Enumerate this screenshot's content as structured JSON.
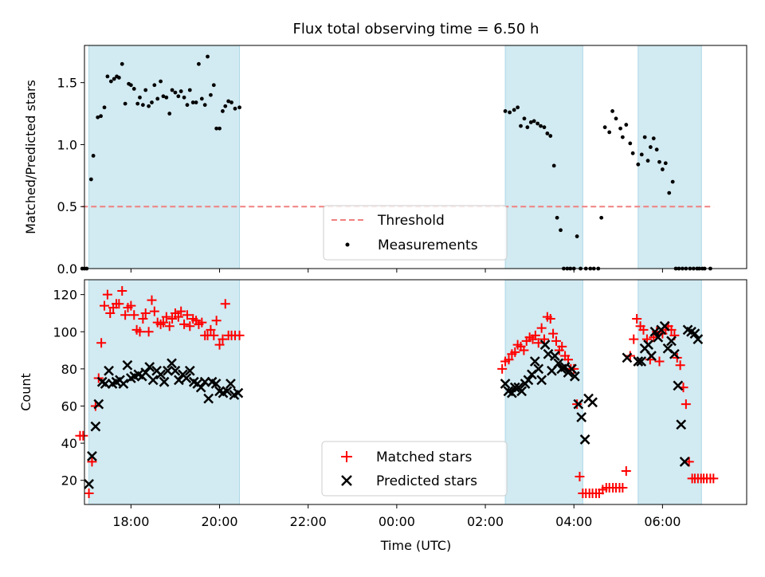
{
  "chart_data": [
    {
      "type": "scatter",
      "title": "Flux total observing time = 6.50 h",
      "xlabel": "",
      "ylabel": "Matched/Predicted stars",
      "xlim": [
        16.95,
        31.9
      ],
      "ylim": [
        0,
        1.8
      ],
      "yticks": [
        0,
        0.5,
        1.0,
        1.5
      ],
      "ytick_labels": [
        "0.0",
        "0.5",
        "1.0",
        "1.5"
      ],
      "bands": [
        [
          17.05,
          20.45
        ],
        [
          26.45,
          28.2
        ],
        [
          29.45,
          30.88
        ]
      ],
      "band_color": "#add8e6",
      "threshold": {
        "name": "Threshold",
        "value": 0.5,
        "x_range": [
          16.9,
          31.15
        ],
        "color": "#f08080"
      },
      "legend": {
        "position": "lower-center",
        "entries": [
          "Threshold",
          "Measurements"
        ]
      },
      "series": [
        {
          "name": "Measurements",
          "color": "#000000",
          "x": [
            16.9,
            16.95,
            17.0,
            17.1,
            17.15,
            17.25,
            17.32,
            17.4,
            17.47,
            17.55,
            17.62,
            17.68,
            17.73,
            17.8,
            17.87,
            17.95,
            18.0,
            18.07,
            18.15,
            18.2,
            18.27,
            18.33,
            18.4,
            18.47,
            18.53,
            18.6,
            18.67,
            18.73,
            18.8,
            18.87,
            18.93,
            19.0,
            19.07,
            19.13,
            19.2,
            19.27,
            19.33,
            19.4,
            19.47,
            19.53,
            19.6,
            19.67,
            19.73,
            19.8,
            19.87,
            19.93,
            20.0,
            20.07,
            20.13,
            20.2,
            20.27,
            20.35,
            20.45,
            26.45,
            26.55,
            26.65,
            26.73,
            26.8,
            26.88,
            26.95,
            27.03,
            27.1,
            27.18,
            27.25,
            27.33,
            27.4,
            27.47,
            27.55,
            27.62,
            27.7,
            27.77,
            27.85,
            27.92,
            28.0,
            28.07,
            28.15,
            28.27,
            28.37,
            28.45,
            28.55,
            28.62,
            28.7,
            28.8,
            28.87,
            28.95,
            29.05,
            29.1,
            29.18,
            29.27,
            29.33,
            29.45,
            29.53,
            29.6,
            29.67,
            29.73,
            29.8,
            29.87,
            29.93,
            30.0,
            30.07,
            30.15,
            30.23,
            30.3,
            30.37,
            30.45,
            30.53,
            30.62,
            30.7,
            30.78,
            30.83,
            30.9,
            30.95,
            31.08
          ],
          "y": [
            0.0,
            0.0,
            0.0,
            0.72,
            0.91,
            1.22,
            1.23,
            1.3,
            1.55,
            1.51,
            1.53,
            1.55,
            1.54,
            1.65,
            1.33,
            1.49,
            1.48,
            1.45,
            1.33,
            1.38,
            1.32,
            1.44,
            1.31,
            1.34,
            1.48,
            1.37,
            1.51,
            1.39,
            1.38,
            1.25,
            1.44,
            1.42,
            1.39,
            1.43,
            1.38,
            1.32,
            1.44,
            1.34,
            1.34,
            1.65,
            1.37,
            1.32,
            1.71,
            1.4,
            1.48,
            1.13,
            1.13,
            1.27,
            1.31,
            1.35,
            1.34,
            1.29,
            1.3,
            1.27,
            1.26,
            1.28,
            1.3,
            1.15,
            1.21,
            1.14,
            1.18,
            1.19,
            1.17,
            1.15,
            1.14,
            1.09,
            1.07,
            0.83,
            0.41,
            0.31,
            0.0,
            0.0,
            0.0,
            0.0,
            0.26,
            0.0,
            0.0,
            0.0,
            0.0,
            0.0,
            0.41,
            1.14,
            1.1,
            1.27,
            1.21,
            1.13,
            1.06,
            1.16,
            1.01,
            0.93,
            0.84,
            0.92,
            1.06,
            0.87,
            0.98,
            1.05,
            0.96,
            0.86,
            0.8,
            0.85,
            0.61,
            0.7,
            0.0,
            0.0,
            0.0,
            0.0,
            0.0,
            0.0,
            0.0,
            0.0,
            0.0,
            0.0,
            0.0
          ]
        }
      ]
    },
    {
      "type": "scatter",
      "title": "",
      "xlabel": "Time (UTC)",
      "ylabel": "Count",
      "xlim": [
        16.95,
        31.9
      ],
      "ylim": [
        7,
        128
      ],
      "yticks": [
        20,
        40,
        60,
        80,
        100,
        120
      ],
      "xticks": [
        18,
        20,
        22,
        24,
        26,
        28,
        30
      ],
      "xtick_labels": [
        "18:00",
        "20:00",
        "22:00",
        "00:00",
        "02:00",
        "04:00",
        "06:00"
      ],
      "bands": [
        [
          17.05,
          20.45
        ],
        [
          26.45,
          28.2
        ],
        [
          29.45,
          30.88
        ]
      ],
      "band_color": "#add8e6",
      "legend": {
        "position": "lower-center",
        "entries": [
          "Matched stars",
          "Predicted stars"
        ]
      },
      "series": [
        {
          "name": "Matched stars",
          "color": "#ff0000",
          "marker": "+",
          "x": [
            16.85,
            16.92,
            17.05,
            17.12,
            17.2,
            17.27,
            17.33,
            17.4,
            17.47,
            17.53,
            17.6,
            17.67,
            17.73,
            17.8,
            17.87,
            17.93,
            18.0,
            18.07,
            18.13,
            18.2,
            18.27,
            18.33,
            18.4,
            18.47,
            18.53,
            18.6,
            18.67,
            18.73,
            18.8,
            18.87,
            18.93,
            19.0,
            19.07,
            19.13,
            19.2,
            19.27,
            19.33,
            19.4,
            19.47,
            19.53,
            19.6,
            19.67,
            19.73,
            19.8,
            19.87,
            19.93,
            20.0,
            20.07,
            20.13,
            20.2,
            20.27,
            20.35,
            20.45,
            26.38,
            26.45,
            26.53,
            26.6,
            26.67,
            26.73,
            26.8,
            26.87,
            26.93,
            27.0,
            27.07,
            27.13,
            27.2,
            27.27,
            27.33,
            27.4,
            27.47,
            27.53,
            27.6,
            27.67,
            27.73,
            27.8,
            27.87,
            27.93,
            28.0,
            28.07,
            28.13,
            28.2,
            28.27,
            28.35,
            28.42,
            28.5,
            28.57,
            28.65,
            28.73,
            28.8,
            28.88,
            28.95,
            29.03,
            29.1,
            29.18,
            29.27,
            29.35,
            29.42,
            29.5,
            29.57,
            29.65,
            29.72,
            29.8,
            29.87,
            29.93,
            30.0,
            30.07,
            30.13,
            30.2,
            30.27,
            30.33,
            30.4,
            30.47,
            30.53,
            30.6,
            30.67,
            30.73,
            30.8,
            30.87,
            30.93,
            31.0,
            31.08,
            31.15
          ],
          "y": [
            44,
            44,
            13,
            30,
            60,
            75,
            94,
            114,
            120,
            110,
            113,
            115,
            115,
            122,
            109,
            113,
            114,
            109,
            101,
            100,
            107,
            110,
            100,
            117,
            111,
            105,
            104,
            105,
            108,
            103,
            107,
            110,
            108,
            111,
            104,
            109,
            103,
            107,
            106,
            104,
            105,
            98,
            98,
            101,
            98,
            106,
            93,
            96,
            115,
            98,
            98,
            98,
            98,
            80,
            84,
            85,
            88,
            89,
            93,
            92,
            90,
            95,
            97,
            96,
            98,
            94,
            102,
            96,
            108,
            107,
            99,
            95,
            90,
            92,
            87,
            85,
            80,
            80,
            61,
            22,
            13,
            13,
            13,
            13,
            13,
            13,
            15,
            16,
            16,
            16,
            16,
            16,
            16,
            25,
            87,
            96,
            107,
            103,
            101,
            96,
            85,
            97,
            100,
            84,
            99,
            101,
            103,
            101,
            98,
            86,
            82,
            70,
            61,
            30,
            21,
            21,
            21,
            21,
            21,
            21,
            21,
            21
          ],
          "note": ""
        },
        {
          "name": "Predicted stars",
          "color": "#000000",
          "marker": "x",
          "x": [
            17.05,
            17.12,
            17.2,
            17.27,
            17.35,
            17.42,
            17.5,
            17.58,
            17.67,
            17.75,
            17.83,
            17.92,
            18.0,
            18.08,
            18.17,
            18.25,
            18.33,
            18.42,
            18.5,
            18.58,
            18.67,
            18.75,
            18.83,
            18.92,
            19.0,
            19.08,
            19.17,
            19.25,
            19.33,
            19.42,
            19.5,
            19.58,
            19.67,
            19.75,
            19.83,
            19.92,
            20.0,
            20.08,
            20.17,
            20.25,
            20.33,
            20.42,
            26.45,
            26.52,
            26.6,
            26.67,
            26.75,
            26.82,
            26.9,
            26.97,
            27.05,
            27.12,
            27.2,
            27.27,
            27.35,
            27.42,
            27.5,
            27.57,
            27.65,
            27.72,
            27.8,
            27.87,
            27.95,
            28.02,
            28.1,
            28.17,
            28.25,
            28.33,
            28.42,
            29.2,
            29.45,
            29.52,
            29.6,
            29.68,
            29.75,
            29.83,
            29.9,
            29.97,
            30.05,
            30.12,
            30.2,
            30.27,
            30.35,
            30.42,
            30.5,
            30.57,
            30.65,
            30.73,
            30.8
          ],
          "y": [
            18,
            33,
            49,
            61,
            73,
            72,
            79,
            72,
            73,
            74,
            72,
            82,
            75,
            76,
            77,
            76,
            78,
            81,
            74,
            79,
            77,
            73,
            79,
            83,
            79,
            74,
            77,
            75,
            79,
            73,
            72,
            70,
            73,
            64,
            73,
            72,
            68,
            67,
            68,
            72,
            66,
            67,
            72,
            68,
            67,
            70,
            70,
            68,
            72,
            74,
            77,
            84,
            80,
            74,
            93,
            88,
            79,
            87,
            83,
            80,
            81,
            78,
            80,
            76,
            61,
            54,
            42,
            64,
            62,
            86,
            84,
            84,
            91,
            93,
            87,
            100,
            97,
            101,
            103,
            91,
            95,
            88,
            71,
            50,
            30,
            101,
            100,
            99,
            96
          ],
          "note": ""
        }
      ]
    }
  ]
}
